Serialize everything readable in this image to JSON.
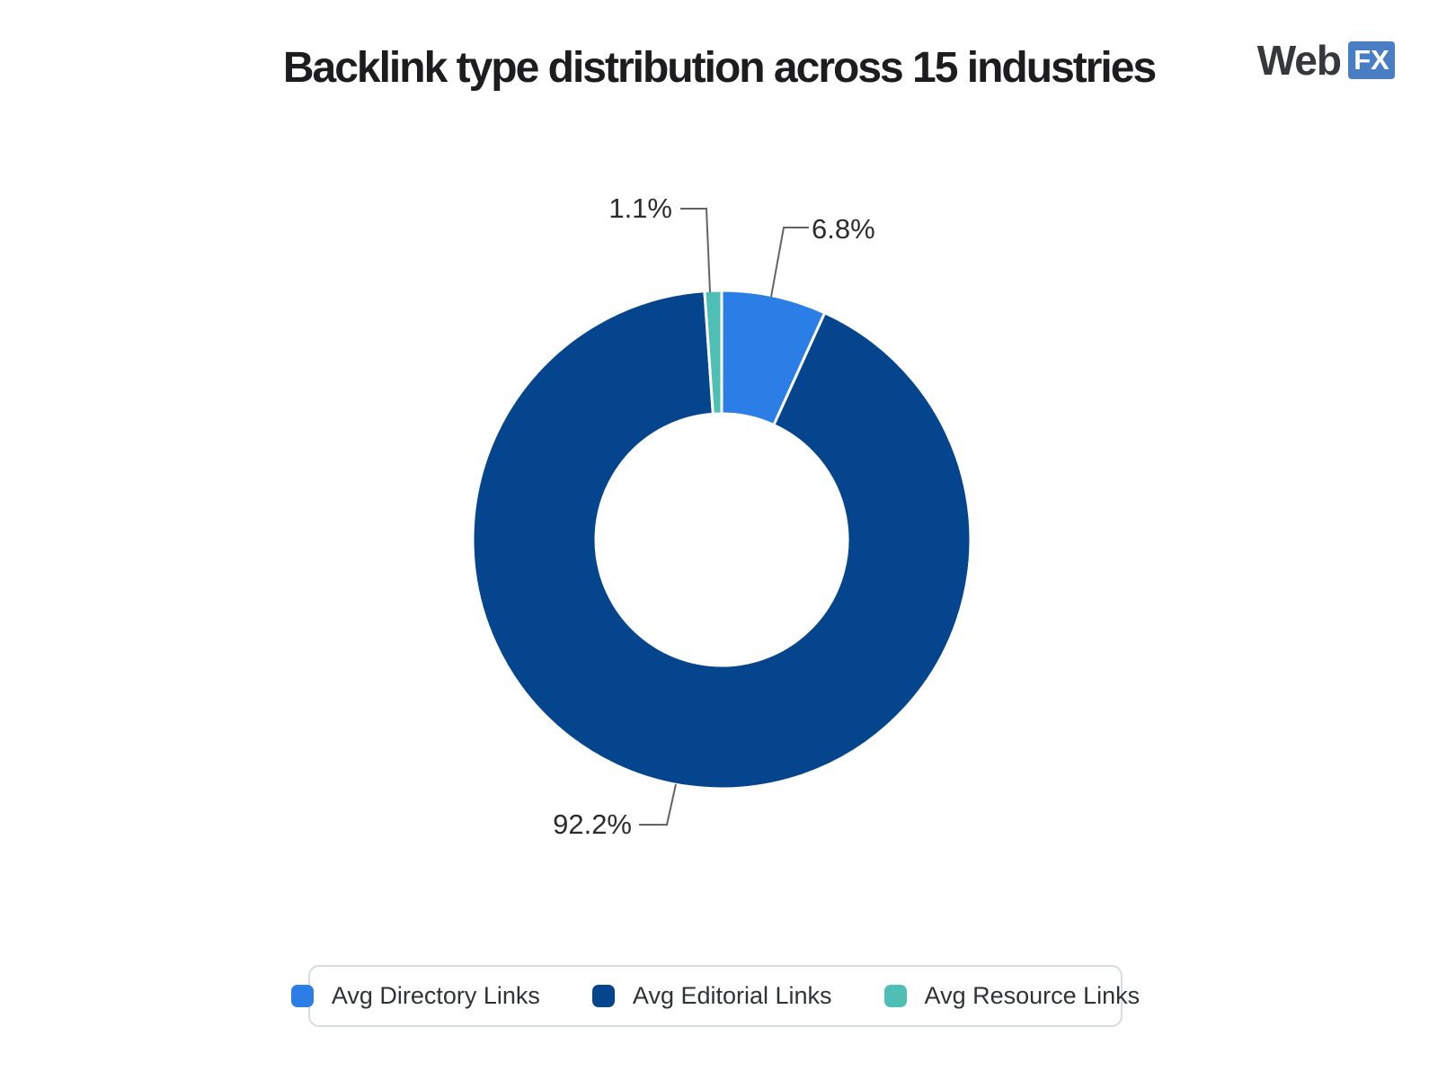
{
  "header": {
    "title": "Backlink type distribution across 15 industries",
    "logo": {
      "text_left": "Web",
      "text_right": "FX",
      "fx_badge_color": "#4a7ec4"
    }
  },
  "chart_data": {
    "type": "pie",
    "subtype": "donut",
    "title": "Backlink type distribution across 15 industries",
    "unit": "percent",
    "start_angle_deg": 0,
    "direction": "clockwise",
    "inner_radius_ratio": 0.505,
    "legend_position": "bottom",
    "segments": [
      {
        "label": "Avg Directory Links",
        "value": 6.8,
        "display": "6.8%",
        "color": "#2A7EE6"
      },
      {
        "label": "Avg Editorial Links",
        "value": 92.2,
        "display": "92.2%",
        "color": "#05458D"
      },
      {
        "label": "Avg Resource Links",
        "value": 1.1,
        "display": "1.1%",
        "color": "#4FBFB5"
      }
    ],
    "colors": {
      "slice_gap_stroke": "#ffffff",
      "leader_line": "#606468",
      "background": "#ffffff"
    }
  }
}
